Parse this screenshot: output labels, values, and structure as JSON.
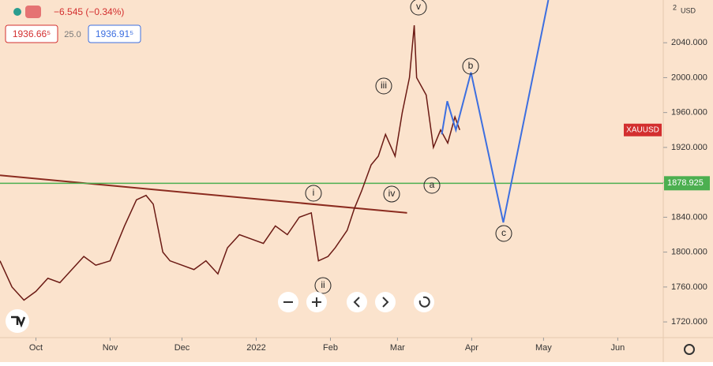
{
  "header": {
    "change": "−6.545 (−0.34%)",
    "bid": "1936.66⁵",
    "spread": "25.0",
    "ask": "1936.91⁵"
  },
  "chart_data": {
    "type": "line",
    "symbol": "XAUUSD",
    "currency": "USD",
    "scale_note": "2",
    "xlim": [
      -15,
      262
    ],
    "ylim": [
      1702,
      2089
    ],
    "xticks": [
      {
        "value": 0,
        "label": "Oct"
      },
      {
        "value": 31,
        "label": "Nov"
      },
      {
        "value": 61,
        "label": "Dec"
      },
      {
        "value": 92,
        "label": "2022"
      },
      {
        "value": 123,
        "label": "Feb"
      },
      {
        "value": 151,
        "label": "Mar"
      },
      {
        "value": 182,
        "label": "Apr"
      },
      {
        "value": 212,
        "label": "May"
      },
      {
        "value": 243,
        "label": "Jun"
      }
    ],
    "yticks": [
      {
        "value": 1720,
        "label": "1720.000"
      },
      {
        "value": 1760,
        "label": "1760.000"
      },
      {
        "value": 1800,
        "label": "1800.000"
      },
      {
        "value": 1840,
        "label": "1840.000"
      },
      {
        "value": 1880,
        "label": "1880.000"
      },
      {
        "value": 1920,
        "label": "1920.000"
      },
      {
        "value": 1960,
        "label": "1960.000"
      },
      {
        "value": 2000,
        "label": "2000.000"
      },
      {
        "value": 2040,
        "label": "2040.000"
      }
    ],
    "series": [
      {
        "color": "#6b1a14",
        "x": [
          -15,
          -10,
          -5,
          0,
          5,
          10,
          15,
          20,
          25,
          31,
          37,
          42,
          46,
          49,
          53,
          56,
          61,
          66,
          71,
          76,
          80,
          85,
          90,
          95,
          100,
          105,
          110,
          115,
          118,
          122,
          125,
          130,
          133,
          136,
          140,
          143,
          146,
          150,
          153,
          156,
          158,
          159,
          163,
          166,
          169,
          172,
          175,
          177
        ],
        "values": [
          1790,
          1760,
          1745,
          1755,
          1770,
          1765,
          1780,
          1795,
          1785,
          1790,
          1830,
          1860,
          1865,
          1855,
          1800,
          1790,
          1785,
          1780,
          1790,
          1775,
          1805,
          1820,
          1815,
          1810,
          1830,
          1820,
          1840,
          1845,
          1790,
          1795,
          1805,
          1825,
          1850,
          1870,
          1900,
          1910,
          1935,
          1910,
          1960,
          2000,
          2060,
          2000,
          1980,
          1920,
          1940,
          1925,
          1955,
          1940
        ]
      },
      {
        "color": "#3d6fe0",
        "x": [
          169.5,
          171.8,
          175.4,
          181.7,
          195.2,
          214
        ],
        "values": [
          1935,
          1973,
          1940,
          2006,
          1834,
          2089
        ]
      }
    ],
    "hline": {
      "value": 1878.925,
      "color": "#4caf50"
    },
    "trendline": {
      "x": [
        -15,
        155
      ],
      "values": [
        1888,
        1845
      ],
      "color": "#8b2b1f"
    },
    "wave_labels": [
      "v",
      "iii",
      "iv",
      "i",
      "ii",
      "a",
      "b",
      "c"
    ]
  }
}
